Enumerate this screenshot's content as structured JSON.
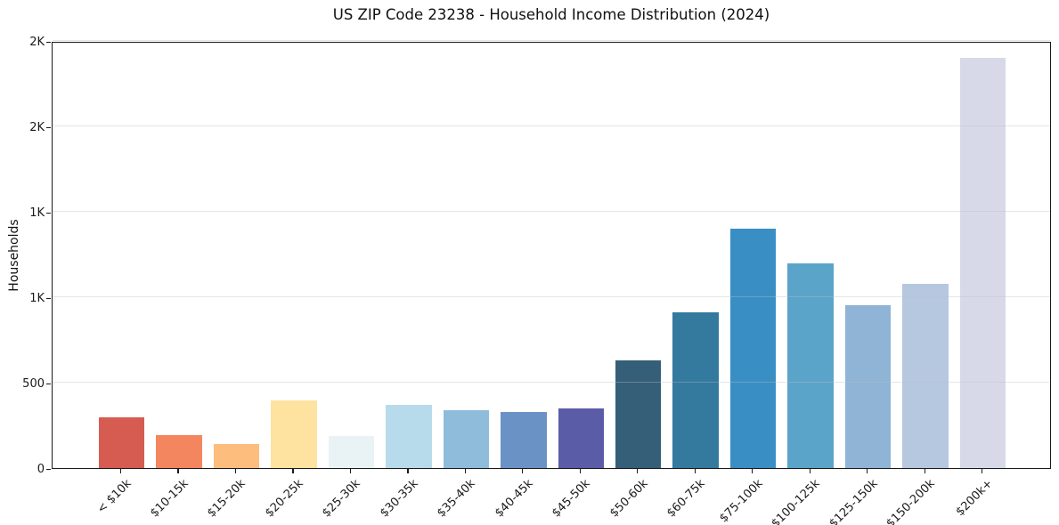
{
  "figure": {
    "title": "US ZIP Code 23238 - Household Income Distribution (2024)"
  },
  "chart_data": {
    "type": "bar",
    "title": "US ZIP Code 23238 - Household Income Distribution (2024)",
    "xlabel": "",
    "ylabel": "Households",
    "ylim": [
      0,
      2500
    ],
    "grid": true,
    "legend": false,
    "yticks": [
      {
        "value": 0,
        "label": "0"
      },
      {
        "value": 500,
        "label": "500"
      },
      {
        "value": 1000,
        "label": "1K"
      },
      {
        "value": 1500,
        "label": "1K"
      },
      {
        "value": 2000,
        "label": "2K"
      },
      {
        "value": 2500,
        "label": "2K"
      }
    ],
    "categories": [
      "< $10k",
      "$10-15k",
      "$15-20k",
      "$20-25k",
      "$25-30k",
      "$30-35k",
      "$35-40k",
      "$40-45k",
      "$45-50k",
      "$50-60k",
      "$60-75k",
      "$75-100k",
      "$100-125k",
      "$125-150k",
      "$150-200k",
      "$200k+"
    ],
    "values": [
      295,
      195,
      143,
      398,
      188,
      370,
      340,
      330,
      350,
      630,
      910,
      1400,
      1198,
      955,
      1080,
      2400
    ],
    "bar_colors": [
      "#d65c51",
      "#f4865f",
      "#fcbd7d",
      "#fde2a0",
      "#e9f2f4",
      "#b7dbea",
      "#90bcdb",
      "#6b92c4",
      "#5b5ca7",
      "#355f78",
      "#34799e",
      "#398fc3",
      "#5ba4c9",
      "#8fb4d5",
      "#b6c7e0",
      "#d8d9e8"
    ],
    "grid_color": "rgba(185,190,202,0.38)",
    "axis_color": "#1a1a1a"
  }
}
